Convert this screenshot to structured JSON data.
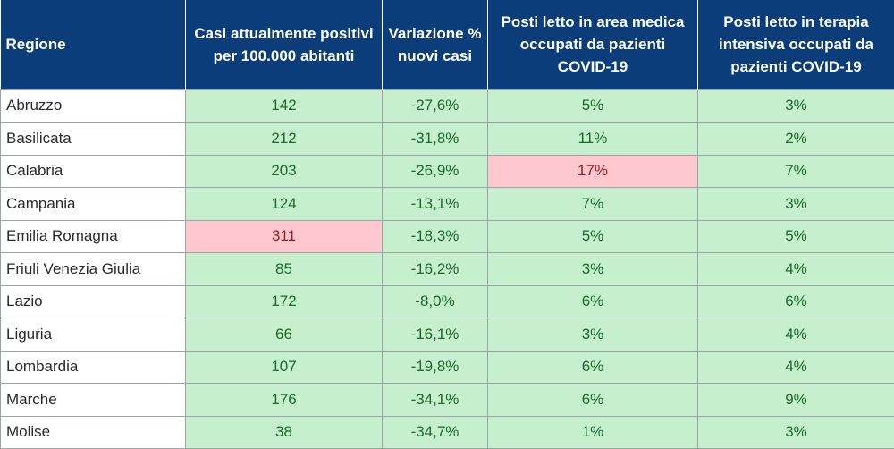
{
  "headers": {
    "region": "Regione",
    "cases": "Casi attualmente positivi per 100.000 abitanti",
    "variation": "Variazione % nuovi casi",
    "medical": "Posti letto in area medica occupati da pazienti COVID-19",
    "icu": "Posti letto in terapia intensiva occupati da pazienti COVID-19"
  },
  "colors": {
    "header_bg": "#0b3d7a",
    "ok_bg": "#c6efce",
    "ok_text": "#1a6b2a",
    "alert_bg": "#ffc7ce",
    "alert_text": "#a21a23"
  },
  "rows": [
    {
      "region": "Abruzzo",
      "cases": "142",
      "variation": "-27,6%",
      "medical": "5%",
      "icu": "3%",
      "alert": []
    },
    {
      "region": "Basilicata",
      "cases": "212",
      "variation": "-31,8%",
      "medical": "11%",
      "icu": "2%",
      "alert": []
    },
    {
      "region": "Calabria",
      "cases": "203",
      "variation": "-26,9%",
      "medical": "17%",
      "icu": "7%",
      "alert": [
        "medical"
      ]
    },
    {
      "region": "Campania",
      "cases": "124",
      "variation": "-13,1%",
      "medical": "7%",
      "icu": "3%",
      "alert": []
    },
    {
      "region": "Emilia Romagna",
      "cases": "311",
      "variation": "-18,3%",
      "medical": "5%",
      "icu": "5%",
      "alert": [
        "cases"
      ]
    },
    {
      "region": "Friuli Venezia Giulia",
      "cases": "85",
      "variation": "-16,2%",
      "medical": "3%",
      "icu": "4%",
      "alert": []
    },
    {
      "region": "Lazio",
      "cases": "172",
      "variation": "-8,0%",
      "medical": "6%",
      "icu": "6%",
      "alert": []
    },
    {
      "region": "Liguria",
      "cases": "66",
      "variation": "-16,1%",
      "medical": "3%",
      "icu": "4%",
      "alert": []
    },
    {
      "region": "Lombardia",
      "cases": "107",
      "variation": "-19,8%",
      "medical": "6%",
      "icu": "4%",
      "alert": []
    },
    {
      "region": "Marche",
      "cases": "176",
      "variation": "-34,1%",
      "medical": "6%",
      "icu": "9%",
      "alert": []
    },
    {
      "region": "Molise",
      "cases": "38",
      "variation": "-34,7%",
      "medical": "1%",
      "icu": "3%",
      "alert": []
    }
  ]
}
